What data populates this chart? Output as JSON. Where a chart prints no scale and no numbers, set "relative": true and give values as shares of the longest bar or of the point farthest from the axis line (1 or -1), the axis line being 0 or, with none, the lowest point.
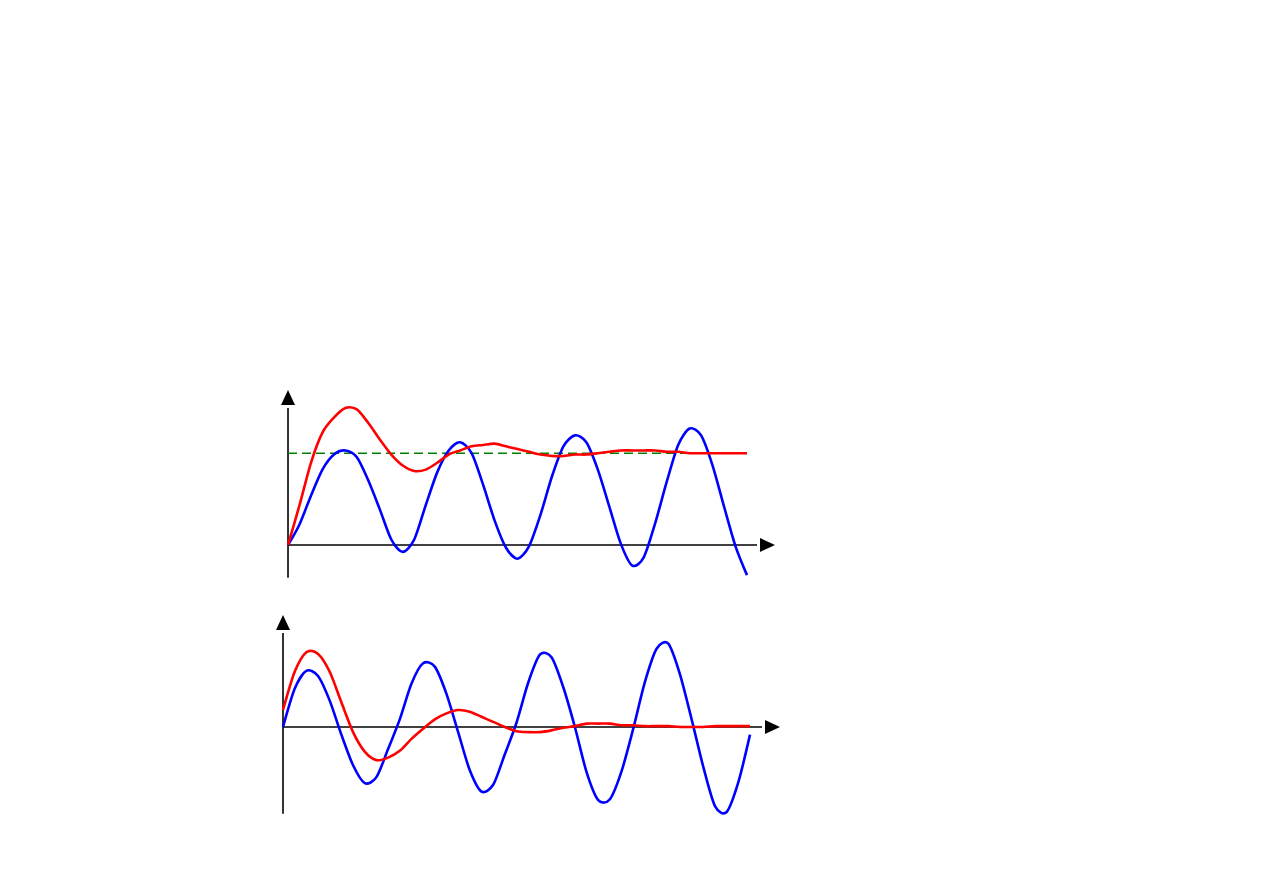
{
  "chart_data": [
    {
      "type": "line",
      "relative": true,
      "categories": [
        null,
        null,
        null,
        null,
        null,
        null,
        null,
        null,
        null,
        null,
        null,
        null,
        null,
        null,
        null,
        null,
        null,
        null,
        null,
        null,
        null,
        null,
        null,
        null,
        null,
        null,
        null,
        null,
        null,
        null,
        null,
        null,
        null,
        null,
        null,
        null,
        null,
        null,
        null,
        null,
        null
      ],
      "series": [
        {
          "color": "#0000ff",
          "values": [
            0,
            0.15,
            0.36,
            0.55,
            0.66,
            0.69,
            0.64,
            0.47,
            0.26,
            0.04,
            -0.05,
            0.04,
            0.29,
            0.53,
            0.69,
            0.75,
            0.67,
            0.44,
            0.18,
            -0.02,
            -0.1,
            -0.01,
            0.22,
            0.5,
            0.72,
            0.8,
            0.75,
            0.55,
            0.28,
            0.01,
            -0.15,
            -0.09,
            0.16,
            0.46,
            0.73,
            0.85,
            0.8,
            0.58,
            0.28,
            -0.01,
            -0.22
          ]
        },
        {
          "color": "#ff0000",
          "values": [
            0,
            0.29,
            0.6,
            0.82,
            0.93,
            1,
            0.99,
            0.89,
            0.77,
            0.66,
            0.58,
            0.54,
            0.55,
            0.6,
            0.66,
            0.69,
            0.72,
            0.73,
            0.74,
            0.72,
            0.7,
            0.68,
            0.66,
            0.65,
            0.65,
            0.66,
            0.66,
            0.67,
            0.68,
            0.69,
            0.69,
            0.69,
            0.69,
            0.68,
            0.68,
            0.67,
            0.67,
            0.67,
            0.67,
            0.67,
            0.67
          ]
        }
      ],
      "ref_lines": [
        {
          "axis": "y",
          "value": 0.67,
          "color": "#008000",
          "line_style": "dashed"
        }
      ]
    },
    {
      "type": "line",
      "relative": true,
      "categories": [
        null,
        null,
        null,
        null,
        null,
        null,
        null,
        null,
        null,
        null,
        null,
        null,
        null,
        null,
        null,
        null,
        null,
        null,
        null,
        null,
        null,
        null,
        null,
        null,
        null,
        null,
        null,
        null,
        null,
        null,
        null,
        null,
        null,
        null,
        null,
        null,
        null,
        null,
        null,
        null,
        null
      ],
      "series": [
        {
          "color": "#0000ff",
          "values": [
            0,
            0.45,
            0.66,
            0.6,
            0.31,
            -0.09,
            -0.45,
            -0.66,
            -0.59,
            -0.26,
            0.09,
            0.51,
            0.75,
            0.71,
            0.39,
            -0.06,
            -0.51,
            -0.76,
            -0.68,
            -0.32,
            0.05,
            0.52,
            0.85,
            0.82,
            0.47,
            0,
            -0.53,
            -0.86,
            -0.85,
            -0.52,
            -0.02,
            0.53,
            0.92,
            0.98,
            0.62,
            0.09,
            -0.47,
            -0.93,
            -1,
            -0.65,
            -0.09
          ]
        },
        {
          "color": "#ff0000",
          "values": [
            0.2,
            0.65,
            0.88,
            0.86,
            0.65,
            0.29,
            -0.06,
            -0.29,
            -0.39,
            -0.36,
            -0.28,
            -0.14,
            -0.02,
            0.09,
            0.16,
            0.2,
            0.18,
            0.12,
            0.06,
            0,
            -0.05,
            -0.06,
            -0.06,
            -0.04,
            -0.01,
            0.01,
            0.04,
            0.04,
            0.04,
            0.02,
            0.02,
            0.01,
            0.01,
            0.01,
            0,
            0,
            0,
            0.01,
            0.01,
            0.01,
            0.01
          ]
        }
      ]
    }
  ]
}
